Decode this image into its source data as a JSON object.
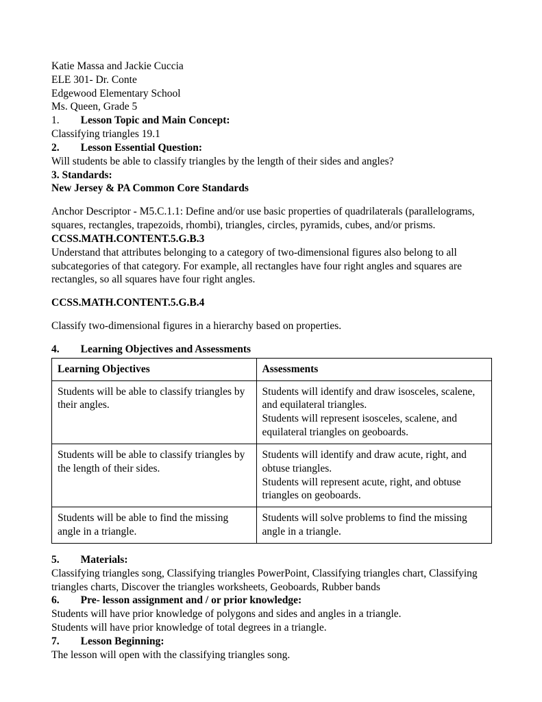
{
  "header": {
    "authors": "Katie Massa and Jackie Cuccia",
    "course": "ELE 301- Dr. Conte",
    "school": "Edgewood Elementary School",
    "teacher": "Ms. Queen, Grade 5"
  },
  "sections": {
    "s1": {
      "num": "1.",
      "title": "Lesson Topic and Main Concept:",
      "body": "Classifying triangles 19.1"
    },
    "s2": {
      "num": "2.",
      "title": "Lesson Essential Question:",
      "body": "Will students be able to classify triangles by the length of their sides and angles?"
    },
    "s3": {
      "title": "3. Standards:",
      "sub": "New Jersey & PA Common Core Standards"
    },
    "anchor": "Anchor Descriptor - M5.C.1.1: Define and/or use basic properties of quadrilaterals (parallelograms, squares, rectangles, trapezoids, rhombi), triangles, circles, pyramids, cubes, and/or prisms.",
    "ccss1": {
      "code": "CCSS.MATH.CONTENT.5.G.B.3",
      "text": "Understand that attributes belonging to a category of two-dimensional figures also belong to all subcategories of that category. For example, all rectangles have four right angles and squares are rectangles, so all squares have four right angles."
    },
    "ccss2": {
      "code": "CCSS.MATH.CONTENT.5.G.B.4",
      "text": "Classify two-dimensional figures in a hierarchy based on properties."
    },
    "s4": {
      "num": "4.",
      "title": "Learning Objectives and Assessments"
    },
    "s5": {
      "num": "5.",
      "title": "Materials:",
      "body": "Classifying triangles song, Classifying triangles PowerPoint, Classifying triangles chart, Classifying triangles charts, Discover the triangles worksheets, Geoboards, Rubber bands"
    },
    "s6": {
      "num": "6.",
      "title": "Pre- lesson assignment and / or prior knowledge:",
      "body1": "Students will have prior knowledge of polygons and sides and angles in a triangle.",
      "body2": "Students will have prior knowledge of total degrees in a triangle."
    },
    "s7": {
      "num": "7.",
      "title": "Lesson Beginning:",
      "body": "The lesson will open with the classifying triangles song."
    }
  },
  "table": {
    "head": {
      "c1": "Learning Objectives",
      "c2": "Assessments"
    },
    "r1": {
      "c1": "Students will be able to classify triangles by their angles.",
      "c2": "Students will identify and draw isosceles, scalene, and equilateral triangles.\nStudents will represent isosceles, scalene, and equilateral triangles on geoboards."
    },
    "r2": {
      "c1": "Students will be able to classify triangles by the length of their sides.",
      "c2": "Students will identify and draw acute, right, and obtuse triangles.\nStudents will represent acute, right, and obtuse triangles on geoboards."
    },
    "r3": {
      "c1": "Students will be able to find the missing angle in a triangle.",
      "c2": "Students will solve problems to find the missing angle in a triangle."
    }
  }
}
